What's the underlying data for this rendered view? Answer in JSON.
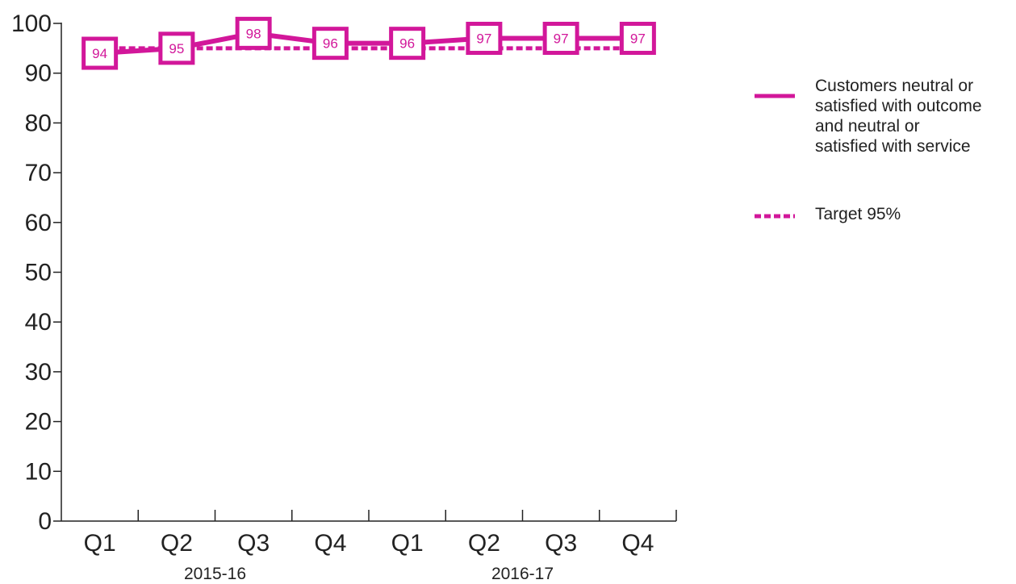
{
  "chart_data": {
    "type": "line",
    "categories": [
      "Q1",
      "Q2",
      "Q3",
      "Q4",
      "Q1",
      "Q2",
      "Q3",
      "Q4"
    ],
    "year_groups": [
      {
        "label": "2015-16",
        "quarters": [
          0,
          1,
          2,
          3
        ]
      },
      {
        "label": "2016-17",
        "quarters": [
          4,
          5,
          6,
          7
        ]
      }
    ],
    "series": [
      {
        "name": "Customers neutral or satisfied with outcome and neutral or satisfied with service",
        "legend_lines": [
          "Customers neutral or",
          "satisfied with outcome",
          "and neutral or",
          "satisfied with service"
        ],
        "values": [
          94,
          95,
          98,
          96,
          96,
          97,
          97,
          97
        ],
        "style": "solid",
        "markers": "labelled-square"
      },
      {
        "name": "Target 95%",
        "values": [
          95,
          95,
          95,
          95,
          95,
          95,
          95,
          95
        ],
        "style": "dotted"
      }
    ],
    "ylim": [
      0,
      100
    ],
    "yticks": [
      0,
      10,
      20,
      30,
      40,
      50,
      60,
      70,
      80,
      90,
      100
    ],
    "grid": false,
    "legend_position": "right",
    "colors": {
      "line": "#D2179A",
      "axis": "#222222",
      "text": "#222222"
    }
  }
}
